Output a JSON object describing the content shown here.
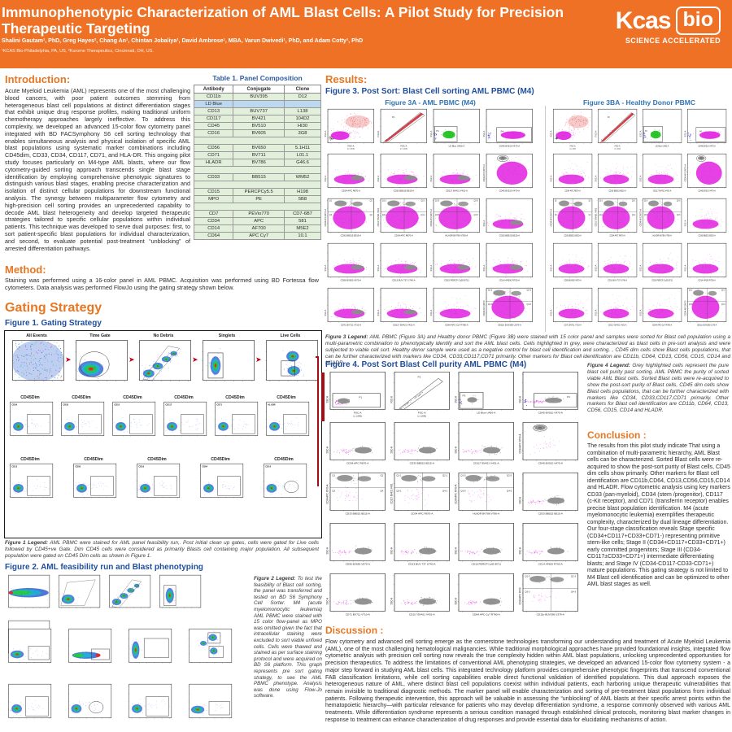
{
  "header": {
    "title": "Immunophenotypic Characterization of AML Blast Cells: A Pilot Study for Precision Therapeutic Targeting",
    "authors": "Shalini Gautam¹, PhD, Greg Hayes², Chang An¹, Chintan Jobaliya¹, David Ambrose¹, MBA, Varun Dwivedi¹, PhD, and Adam Cotty¹, PhD",
    "affiliations": "¹KCAS Bio-Philadelphia, PA, US, ²Kurome Therapeutics, Cincinnati, OH, US.",
    "logo_text1": "Kcas",
    "logo_text2": "bio",
    "logo_tagline": "SCIENCE ACCELERATED",
    "brand_orange": "#ee7125"
  },
  "intro": {
    "heading": "Introduction:",
    "body": "Acute Myeloid Leukemia (AML) represents one of the most challenging blood cancers, with poor patient outcomes stemming from heterogeneous blast cell populations at distinct differentiation stages that exhibit unique drug response profiles, making traditional uniform chemotherapy approaches largely ineffective. To address this complexity, we developed an advanced 15-color flow cytometry panel integrated with BD FACSymphony S6 cell sorting technology that enables simultaneous analysis and physical isolation of specific AML blast populations using systematic marker combinations including CD45dim, CD33, CD34, CD117, CD71, and HLA-DR. This ongoing pilot study focuses particularly on M4-type AML blasts, where our flow cytometry-guided sorting approach transcends single blast stage identification by employing comprehensive phenotypic signatures to distinguish various blast stages, enabling precise characterization and isolation of distinct cellular populations for downstream functional analysis. The synergy between multiparameter flow cytometry and high-precision cell sorting provides an unprecedented capability to decode AML blast heterogeneity and develop targeted therapeutic strategies tailored to specific cellular populations within individual patients. This technique was developed to serve dual purposes: first, to sort patient-specific blast populations for individual characterization, and second, to evaluate potential post-treatment “unblocking” of arrested differentiation pathways."
  },
  "method": {
    "heading": "Method:",
    "body": "Staining was performed using a 16-color panel in AML PBMC. Acquisition was performed using BD Fortessa flow cytometers. Data analysis was performed FlowJo using the gating strategy shown below."
  },
  "table1": {
    "title": "Table 1. Panel Composition",
    "headers": [
      "Antibody",
      "Conjugate",
      "Clone"
    ],
    "rows": [
      {
        "cells": [
          "CD11b",
          "BUV395",
          "D12"
        ]
      },
      {
        "cells": [
          "LD Blue",
          "",
          ""
        ],
        "hl": true
      },
      {
        "cells": [
          "CD13",
          "BUV737",
          "L138"
        ]
      },
      {
        "cells": [
          "CD117",
          "BV421",
          "104D2"
        ]
      },
      {
        "cells": [
          "CD45",
          "BV510",
          "HI30"
        ]
      },
      {
        "cells": [
          "CD16",
          "BV605",
          "3G8"
        ]
      },
      {
        "spacer": true
      },
      {
        "cells": [
          "CD56",
          "BV650",
          "5.1H11"
        ]
      },
      {
        "cells": [
          "CD71",
          "BV711",
          "L01.1"
        ]
      },
      {
        "cells": [
          "HLADR",
          "BV786",
          "G46.6"
        ]
      },
      {
        "spacer": true
      },
      {
        "cells": [
          "CD33",
          "BB515",
          "WM52"
        ]
      },
      {
        "spacer": true
      },
      {
        "cells": [
          "CD15",
          "PERCPCy5.5",
          "H198"
        ]
      },
      {
        "cells": [
          "MPO",
          "PE",
          "5B8"
        ]
      },
      {
        "spacer": true
      },
      {
        "cells": [
          "CD7",
          "PEVio770",
          "CD7-6B7"
        ]
      },
      {
        "cells": [
          "CD34",
          "APC",
          "581"
        ]
      },
      {
        "cells": [
          "CD14",
          "AF700",
          "M5E2"
        ]
      },
      {
        "cells": [
          "CD64",
          "APC Cy7",
          "10.1"
        ]
      }
    ]
  },
  "gating": {
    "heading": "Gating Strategy",
    "fig1_title": "Figure 1. Gating Strategy",
    "fig1_legend_lead": "Figure 1 Legend:",
    "fig1_legend": " AML PBMC were stained for AML panel feasibility run,. Post initial clean up gates, cells were gated for Live cells followed by CD45+ve Gate. Dim CD45 cells were considered as primarily Blasts cell containing major population. All subsequent population were gated on CD45 Dim cells as shown in Figure 1.",
    "fig2_title": "Figure 2. AML feasibility run and Blast phenotyping",
    "fig2_legend_lead": "Figure 2 Legend:",
    "fig2_legend": " To test the feasibility of Blast cell sorting, the panel was transferred and tested on BD S6 Symphony Cell Sorter. M4 (acute myelomonocytic leukemia) AML PBMC were stained with 15 color flow-panel as MPO was omitted given the fact that intracellular staining were excluded to sort viable unfixed cells. Cells were thawed and stained as per surface staining protocol and were acquired on BD S6 platform. This graph represents pre sort gating strategy, to see the AML  PBMC phenotype.  Analysis was done using Flow-Jo software."
  },
  "results": {
    "heading": "Results:",
    "fig3_title": "Figure 3. Post Sort: Blast Cell sorting AML PBMC (M4)",
    "fig3a_title": "Figure 3A - AML PBMC (M4)",
    "fig3b_title": "Figure 3BA - Healthy Donor PBMC",
    "fig3_legend_lead": "Figure 3 Legend:",
    "fig3_legend": " AML PBMC (Figure 3A) and Healthy donor PBMC (Figure 3B) were stained with 15 color panel and samples were sorted  for Blast cell population using a multi-parametric combination to  phenotypically  identify and sort the AML blast cells. Cells highlighted in grey, were characterized as blast cells in pre-sort analysis and were subjected to viable cell sort. Healthy donor sample were used as a negative control for blast cell identification and sorting. , CD45 dim cells show  Blast  cells populations, that can be further characterized with markers like CD34, CD33,CD117,CD71  primarily. Other markers for Blast cell identification are CD11b, CD64, CD13, CD56, CD15, CD14 and HLADR.",
    "fig4_title": "Figure 4. Post Sort Blast Cell purity AML PBMC (M4)",
    "fig4_legend_lead": "Figure 4 Legend:",
    "fig4_legend": " Grey highlighted  cells represent the pure blast cell purity past sorting. AML PBMC the purity of sorted viable AML Blast cells. Sorted Blast cells were re-acquired to show the post-sort purity of Blast cells, CD45 dim cells show  Blast  cells populations, that can be further characterized with markers like CD34, CD33,CD117,CD71  primarily. Other markers for Blast cell identification are CD11b, CD64, CD13, CD56, CD15, CD14 and HLADR."
  },
  "conclusion": {
    "heading": "Conclusion :",
    "body": "The results from this pilot study indicate That using a combination of multi-parametric hierarchy, AML Blast cells can be characterized. Sorted Blast cells were re-acquired to show the post-sort purity of Blast cells, CD45 dim cells show  primarily. Other markers for Blast cell identification are CD11b,CD64, CD13,CD56,CD15,CD14 and HLADR. Flow cytometric analysis using key markers CD33 (pan-myeloid), CD34 (stem /progenitor), CD117 (c-Kit receptor), and CD71 (transferrin receptor) enables precise blast population identification.  M4 (acute myelomonocytic leukemia) exemplifies therapeutic complexity, characterized by dual lineage differentiation.  Our four-stage classification reveals Stage specific (CD34+CD117+CD33+CD71-) representing primitive stem-like cells; Stage II (CD34+CD117+CD33+CD71+) early committed progenitors; Stage III (CD34-CD117±CD33+CD71+) intermediate differentiating blasts; and Stage IV (CD34-CD117-CD33-CD71+) mature populations. This gating strategy is not limited to M4 Blast cell identification and  can be optimized to other AML blast stages as well."
  },
  "discussion": {
    "heading": "Discussion :",
    "body": "Flow cytometry and advanced cell sorting emerge as the cornerstone technologies transforming our understanding and treatment of Acute Myeloid Leukemia (AML), one of the most challenging hematological malignancies. While traditional morphological approaches have provided foundational insights, integrated flow cytometric analysis with precision cell sorting now reveals the true complexity hidden within AML blast populations, unlocking unprecedented opportunities for precision therapeutics. To address the limitations of conventional AML phenotyping strategies, we developed an advanced 15-color flow cytometry system - a major step forward in studying AML blast cells. This integrated technology platform provides comprehensive phenotypic fingerprints that transcend conventional FAB classification limitations, while cell sorting capabilities enable direct functional validation of identified populations. This dual approach exposes the heterogeneous nature of AML, where distinct blast cell populations coexist within individual patients, each harboring unique therapeutic vulnerabilities that remain invisible to traditional diagnostic methods. The marker panel will enable characterization and sorting of pre-treatment blast populations from individual patients. Following therapeutic intervention, this approach will be valuable in assessing the “unblocking” of AML blasts at their specific arrest points within the hematopoietic hierarchy—with particular relevance for patients who may develop differentiation syndrome, a response commonly observed with various AML treatments. While differentiation syndrome represents a serious condition managed through established clinical protocols, monitoring blast marker changes in response to treatment can enhance characterization of drug responses and provide essential data for elucidating mechanisms of action."
  },
  "plots": {
    "fig1_row1": [
      {
        "t": "All Events",
        "s": "densfull"
      },
      {
        "t": "Time Gate",
        "s": "denstime"
      },
      {
        "t": "No Debris",
        "s": "densdiag"
      },
      {
        "t": "Singlets",
        "s": "denssing"
      },
      {
        "t": "Live Cells",
        "s": "denslive"
      }
    ],
    "fig1_row2": [
      {
        "h": "CD45Dim",
        "m": "CD34",
        "s": "denssm"
      },
      {
        "h": "CD45Dim",
        "m": "CD33",
        "s": "denssm"
      },
      {
        "h": "CD45Dim",
        "m": "CD15",
        "s": "denssm"
      },
      {
        "h": "CD45Dim",
        "m": "CD117",
        "s": "denssm"
      },
      {
        "h": "CD45Dim",
        "m": "CD71",
        "s": "denssm"
      },
      {
        "h": "CD45Dim",
        "m": "HLADR",
        "s": "denssm"
      }
    ],
    "fig1_row3": [
      {
        "h": "CD45Dim",
        "m": "CD13",
        "s": "denssm"
      },
      {
        "h": "CD45Dim",
        "m": "CD56",
        "s": "denssm"
      },
      {
        "h": "CD45Dim",
        "m": "CD16",
        "s": "denssm"
      },
      {
        "h": "CD45Dim",
        "m": "CD64",
        "s": "denssm"
      },
      {
        "h": "CD45Dim",
        "m": "CD14",
        "s": "densell"
      }
    ],
    "fig2_row1": [
      {
        "s": "densband"
      },
      {
        "s": "denspoly"
      },
      {
        "s": "densdiag"
      },
      {
        "s": "denssing"
      },
      {
        "s": "densv2"
      }
    ],
    "fig2_row2": [
      {
        "s": "densq"
      },
      {
        "s": "densv2"
      },
      {
        "s": "densv"
      },
      {
        "s": "dens2"
      }
    ],
    "fig2_row3": [
      {
        "s": "denssm"
      },
      {
        "s": "densell"
      },
      {
        "s": "denssm"
      },
      {
        "s": "densq"
      }
    ],
    "fig3a": [
      {
        "yl": "SSC-A",
        "xl": "FSC-A",
        "xl2": "(x 1,000)",
        "s": "fsc"
      },
      {
        "yl": "FSC-H",
        "xl": "FSC-A",
        "xl2": "(x 1,000)",
        "s": "p2diag",
        "g": "P2"
      },
      {
        "yl": "SSC-A",
        "xl": "LD Blue U450-A",
        "s": "ld",
        "g": "P3"
      },
      {
        "yl": "SSC-A",
        "xl": "CD45 BV510 V470-A",
        "s": "cd45",
        "g": "P4"
      },
      {
        "yl": "SSC-A",
        "xl": "CD34 APC R670-A",
        "s": "mwg"
      },
      {
        "yl": "SSC-A",
        "xl": "CD33 BB515 B515-A",
        "s": "mwg"
      },
      {
        "yl": "SSC-A",
        "xl": "CD117 BV421 V431-A",
        "s": "mwg"
      },
      {
        "yl": "CD34 APC R670-A",
        "xl": "CD45 BV510 V470-A",
        "s": "mtall",
        "g": "P5"
      },
      {
        "yl": "CD34 APC R670-A",
        "xl": "CD33 BB515 B515-A",
        "s": "mquad",
        "q": [
          "Q1",
          "Q2",
          "Q3",
          "Q4"
        ]
      },
      {
        "yl": "CD117 BV421 V431",
        "xl": "CD34 APC R670-A",
        "s": "mquad",
        "q": [
          "Q1-1",
          "Q2-1",
          "Q3-1",
          "Q4-1"
        ]
      },
      {
        "yl": "CD34 APC R670-A",
        "xl": "HLADR BV786 V780-A",
        "s": "mquad",
        "q": [
          "Q1-5",
          "Q2-5",
          "Q3-5",
          "Q4-5"
        ]
      },
      {
        "yl": "SSC-A",
        "xl": "CD33 BB515 B515-A",
        "s": "mwg"
      },
      {
        "yl": "SSC-A",
        "xl": "CD56 BV650 V670-A",
        "s": "mwg"
      },
      {
        "yl": "SSC-A",
        "xl": "CD13 BUV 737 U740-A",
        "s": "mwg"
      },
      {
        "yl": "SSC-A",
        "xl": "CD15 PERCP Cy55 B711",
        "s": "mwg"
      },
      {
        "yl": "SSC-A",
        "xl": "CD14 AF600 R700-A",
        "s": "mwg"
      },
      {
        "yl": "SSC-A",
        "xl": "CD71 BV711 V710-A",
        "s": "mwg"
      },
      {
        "yl": "SSC-A",
        "xl": "CD117 BV421 V431-A",
        "s": "mwg"
      },
      {
        "yl": "SSC-A",
        "xl": "CD64 APC-Cy7 R780-A",
        "s": "mw"
      },
      {
        "yl": "CD34 APC R670",
        "xl": "CD11b BUV395 U379-A",
        "s": "mquad",
        "q": [
          "Q1-3",
          "Q2-3",
          "Q3-3",
          "Q4-3"
        ]
      }
    ],
    "fig3b": [
      {
        "yl": "SSC-A",
        "xl": "FSC-A",
        "xl2": "(x 1,000)",
        "s": "fsc"
      },
      {
        "yl": "FSC-H",
        "xl": "FSC-A",
        "xl2": "(x 1,000)",
        "s": "p2diag",
        "g": "P2"
      },
      {
        "yl": "SSC-A",
        "xl": "LD Blue U450-A",
        "s": "ld",
        "g": "P3"
      },
      {
        "yl": "SSC-A",
        "xl": "CD45 BV510 V470-A",
        "s": "cd45",
        "g": "P4"
      },
      {
        "yl": "SSC-A",
        "xl": "CD34 APC R670-A",
        "s": "mw"
      },
      {
        "yl": "SSC-A",
        "xl": "CD33 BB515 B515-A",
        "s": "mw"
      },
      {
        "yl": "SSC-A",
        "xl": "CD117 BV421 V431-A",
        "s": "mw"
      },
      {
        "yl": "CD34 APC R670-A",
        "xl": "CD45 BV510 V470-A",
        "s": "mtall",
        "g": "P5"
      },
      {
        "yl": "CD34 APC R670-A",
        "xl": "CD33 BB515 B515-A",
        "s": "mquad",
        "q": [
          "Q1",
          "Q2",
          "Q3",
          "Q4"
        ]
      },
      {
        "yl": "CD117 BV421 V431",
        "xl": "CD34 APC R670-A",
        "s": "mquad",
        "q": [
          "Q1-1",
          "Q2-1",
          "Q3-1",
          "Q4-1"
        ]
      },
      {
        "yl": "CD34 APC R670-A",
        "xl": "HLADR BV786 V780-A",
        "s": "mquad",
        "q": [
          "Q1-5",
          "Q2-5",
          "Q3-5",
          "Q4-5"
        ]
      },
      {
        "yl": "SSC-A",
        "xl": "CD33 BB515 B515-A",
        "s": "mw"
      },
      {
        "yl": "SSC-A",
        "xl": "CD56 BV650 V670-A",
        "s": "mw"
      },
      {
        "yl": "SSC-A",
        "xl": "CD13 BUV 737 U740-A",
        "s": "mw"
      },
      {
        "yl": "SSC-A",
        "xl": "CD15 PERCP Cy55 B711",
        "s": "mw"
      },
      {
        "yl": "SSC-A",
        "xl": "CD14 AF600 R700-A",
        "s": "mw"
      },
      {
        "yl": "SSC-A",
        "xl": "CD71 BV711 V710-A",
        "s": "mw"
      },
      {
        "yl": "SSC-A",
        "xl": "CD117 BV421 V431-A",
        "s": "mw"
      },
      {
        "yl": "SSC-A",
        "xl": "CD64 APC-Cy7 R780-A",
        "s": "mw"
      },
      {
        "yl": "CD34 APC R670",
        "xl": "CD11b BUV395 U379-A",
        "s": "mquad",
        "q": [
          "Q1-3",
          "Q2-3",
          "Q3-3",
          "Q4-3"
        ]
      }
    ],
    "fig4": [
      {
        "yl": "SSC-A",
        "xl": "FSC-A",
        "xl2": "(x 1,000)",
        "s": "gfsc",
        "g": "P1"
      },
      {
        "yl": "FSC-H",
        "xl": "FSC-A",
        "xl2": "(x 1,000)",
        "s": "gdiag",
        "g": "P2"
      },
      {
        "yl": "SSC-A",
        "xl": "LD Blue U450-A",
        "s": "gld",
        "g": "P3"
      },
      {
        "yl": "SSC-A",
        "xl": "CD45 BV510 V470-A",
        "s": "gcd45",
        "g": "P4"
      },
      {
        "yl": "SSC-A",
        "xl": "CD34 APC R670-A",
        "s": "gw"
      },
      {
        "yl": "SSC-A",
        "xl": "CD33 BB515 B515-A",
        "s": "gw"
      },
      {
        "yl": "SSC-A",
        "xl": "CD117 BV421 V431-A",
        "s": "gw"
      },
      {
        "yl": "CD34 APC R670-A",
        "xl": "CD45 BV510 V470-A",
        "s": "gtall",
        "g": "P5"
      },
      {
        "yl": "CD34 APC R670-A",
        "xl": "CD33 BB515 B515-A",
        "s": "gquad",
        "q": [
          "Q1",
          "Q2",
          "Q3",
          "Q4"
        ]
      },
      {
        "yl": "CD117 BV421 V431",
        "xl": "CD34 APC R670-A",
        "s": "gquad",
        "q": [
          "Q1-1",
          "Q2-1",
          "Q3-1",
          "Q4-1"
        ]
      },
      {
        "yl": "CD34 APC R670-A",
        "xl": "HLADR BV786 V780-A",
        "s": "gquad",
        "q": [
          "Q1-5",
          "Q2-5",
          "Q3-5",
          "Q4-5"
        ]
      },
      {
        "yl": "SSC-A",
        "xl": "CD33 BB515 B515-A",
        "s": "gw"
      },
      {
        "yl": "SSC-A",
        "xl": "CD56 BV650 V670-A",
        "s": "gw"
      },
      {
        "yl": "SSC-A",
        "xl": "CD13 BUV 737 U740-A",
        "s": "gw"
      },
      {
        "yl": "SSC-A",
        "xl": "CD15 PERCP Cy55 B711",
        "s": "gw"
      },
      {
        "yl": "SSC-A",
        "xl": "CD14 AF600 R700-A",
        "s": "gw"
      },
      {
        "yl": "SSC-A",
        "xl": "CD71 BV711 V710-A",
        "s": "gw"
      },
      {
        "yl": "SSC-A",
        "xl": "CD117 BV421 V431-A",
        "s": "gw"
      },
      {
        "yl": "SSC-A",
        "xl": "CD64 APC-Cy7 R780-A",
        "s": "gw"
      },
      {
        "yl": "CD34 APC R670",
        "xl": "CD11b BUV395 U379-A",
        "s": "gquad",
        "q": [
          "Q1-3",
          "Q2-3",
          "Q3-3",
          "Q4-3"
        ]
      }
    ]
  }
}
